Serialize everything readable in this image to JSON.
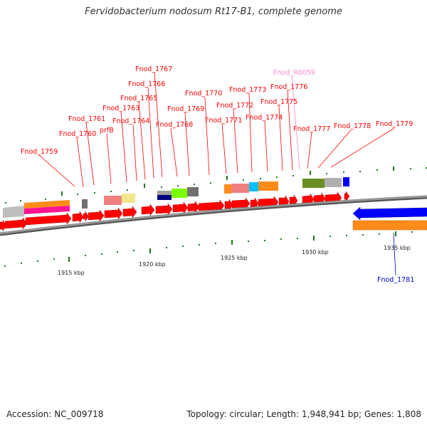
{
  "title": "Fervidobacterium nodosum Rt17-B1, complete genome",
  "footer": {
    "accession": "Accession: NC_009718",
    "stats": "Topology: circular; Length: 1,948,941 bp; Genes: 1,808"
  },
  "colors": {
    "cds_forward": "#ff0000",
    "trna": "#ff88cc",
    "reverse_gene_label": "#0000cc",
    "backbone": "#888888",
    "tick": "#1a7a1a"
  },
  "scale_labels": [
    "1915 kbp",
    "1920 kbp",
    "1925 kbp",
    "1930 kbp",
    "1935 kbp"
  ],
  "gene_labels": [
    {
      "name": "Fnod_1759",
      "color": "#ff0000"
    },
    {
      "name": "Fnod_1760",
      "color": "#ff0000"
    },
    {
      "name": "Fnod_1761",
      "color": "#ff0000"
    },
    {
      "name": "prfB",
      "color": "#ff0000"
    },
    {
      "name": "Fnod_1763",
      "color": "#ff0000"
    },
    {
      "name": "Fnod_1764",
      "color": "#ff0000"
    },
    {
      "name": "Fnod_1765",
      "color": "#ff0000"
    },
    {
      "name": "Fnod_1766",
      "color": "#ff0000"
    },
    {
      "name": "Fnod_1767",
      "color": "#ff0000"
    },
    {
      "name": "Fnod_1768",
      "color": "#ff0000"
    },
    {
      "name": "Fnod_1769",
      "color": "#ff0000"
    },
    {
      "name": "Fnod_1770",
      "color": "#ff0000"
    },
    {
      "name": "Fnod_1771",
      "color": "#ff0000"
    },
    {
      "name": "Fnod_1772",
      "color": "#ff0000"
    },
    {
      "name": "Fnod_1773",
      "color": "#ff0000"
    },
    {
      "name": "Fnod_1774",
      "color": "#ff0000"
    },
    {
      "name": "Fnod_1775",
      "color": "#ff0000"
    },
    {
      "name": "Fnod_1776",
      "color": "#ff0000"
    },
    {
      "name": "Fnod_R0059",
      "color": "#ff88cc"
    },
    {
      "name": "Fnod_1777",
      "color": "#ff0000"
    },
    {
      "name": "Fnod_1778",
      "color": "#ff0000"
    },
    {
      "name": "Fnod_1779",
      "color": "#ff0000"
    },
    {
      "name": "Fnod_1781",
      "color": "#0000cc"
    }
  ]
}
